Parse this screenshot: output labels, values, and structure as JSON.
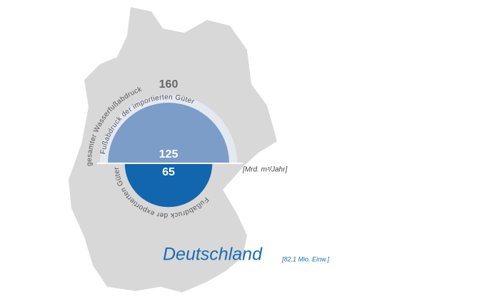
{
  "chart_data": {
    "type": "semicircle",
    "title": "Deutschland",
    "subtitle": "[82,1 Mio. Einw.]",
    "unit": "[Mrd. m³/Jahr]",
    "series": [
      {
        "name": "gesamter Wasserfußabdruck",
        "value": 160,
        "color": "#e4e8f1",
        "side": "top"
      },
      {
        "name": "Fußabdruck der importierten Güter",
        "value": 125,
        "color": "#7b9dc7",
        "side": "top"
      },
      {
        "name": "Fußabdruck der exportierten Güter",
        "value": 65,
        "color": "#1166ae",
        "side": "bottom"
      }
    ]
  }
}
